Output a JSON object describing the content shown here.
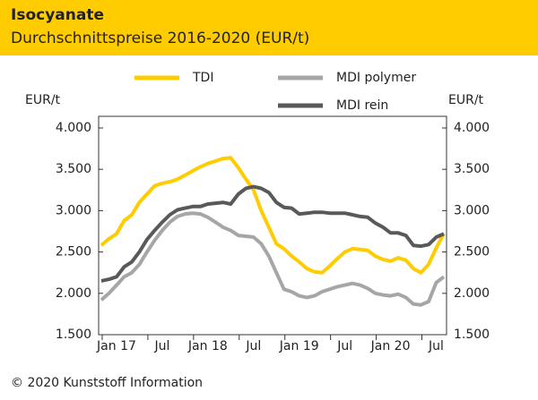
{
  "chart_data": {
    "type": "line",
    "title": "Isocyanate",
    "subtitle": "Durchschnittspreise 2016-2020 (EUR/t)",
    "ylabel": "EUR/t",
    "y2label": "EUR/t",
    "footer": "© 2020 Kunststoff Information",
    "categories": [
      null,
      null,
      "Jan 17",
      null,
      null,
      null,
      null,
      null,
      "Jul",
      null,
      null,
      null,
      null,
      null,
      "Jan 18",
      null,
      null,
      null,
      null,
      null,
      "Jul",
      null,
      null,
      null,
      null,
      null,
      "Jan 19",
      null,
      null,
      null,
      null,
      null,
      "Jul",
      null,
      null,
      null,
      null,
      null,
      "Jan 20",
      null,
      null,
      null,
      null,
      null,
      "Jul",
      null
    ],
    "series": [
      {
        "name": "TDI",
        "color": "#ffcc00",
        "values": [
          2580,
          2660,
          2720,
          2880,
          2950,
          3100,
          3200,
          3300,
          3330,
          3350,
          3380,
          3430,
          3480,
          3530,
          3570,
          3600,
          3630,
          3640,
          3520,
          3380,
          3250,
          3000,
          2800,
          2600,
          2540,
          2450,
          2380,
          2300,
          2260,
          2250,
          2330,
          2420,
          2500,
          2540,
          2530,
          2520,
          2450,
          2410,
          2390,
          2430,
          2400,
          2300,
          2250,
          2350,
          2550,
          2720
        ]
      },
      {
        "name": "MDI polymer",
        "color": "#a6a6a6",
        "values": [
          1920,
          2000,
          2100,
          2200,
          2250,
          2350,
          2500,
          2640,
          2760,
          2860,
          2930,
          2960,
          2970,
          2960,
          2920,
          2860,
          2800,
          2760,
          2700,
          2690,
          2680,
          2600,
          2450,
          2250,
          2050,
          2020,
          1970,
          1950,
          1970,
          2020,
          2050,
          2080,
          2100,
          2120,
          2100,
          2060,
          2000,
          1980,
          1970,
          1990,
          1950,
          1870,
          1860,
          1900,
          2130,
          2200
        ]
      },
      {
        "name": "MDI rein",
        "color": "#595959",
        "values": [
          2150,
          2170,
          2200,
          2320,
          2380,
          2500,
          2650,
          2760,
          2860,
          2950,
          3010,
          3030,
          3050,
          3050,
          3080,
          3090,
          3100,
          3080,
          3200,
          3270,
          3290,
          3270,
          3220,
          3100,
          3040,
          3030,
          2960,
          2970,
          2980,
          2980,
          2970,
          2970,
          2970,
          2950,
          2930,
          2920,
          2850,
          2800,
          2730,
          2730,
          2700,
          2580,
          2570,
          2590,
          2680,
          2720
        ]
      }
    ],
    "ylim": [
      1500,
      4000
    ],
    "yticks": [
      {
        "value": 1500,
        "label": "1.500"
      },
      {
        "value": 2000,
        "label": "2.000"
      },
      {
        "value": 2500,
        "label": "2.500"
      },
      {
        "value": 3000,
        "label": "3.000"
      },
      {
        "value": 3500,
        "label": "3.500"
      },
      {
        "value": 4000,
        "label": "4.000"
      }
    ],
    "y2lim": [
      1500,
      4000
    ],
    "y2ticks": [
      {
        "value": 1500,
        "label": "1.500"
      },
      {
        "value": 2000,
        "label": "2.000"
      },
      {
        "value": 2500,
        "label": "2.500"
      },
      {
        "value": 3000,
        "label": "3.000"
      },
      {
        "value": 3500,
        "label": "3.500"
      },
      {
        "value": 4000,
        "label": "4.000"
      }
    ]
  }
}
